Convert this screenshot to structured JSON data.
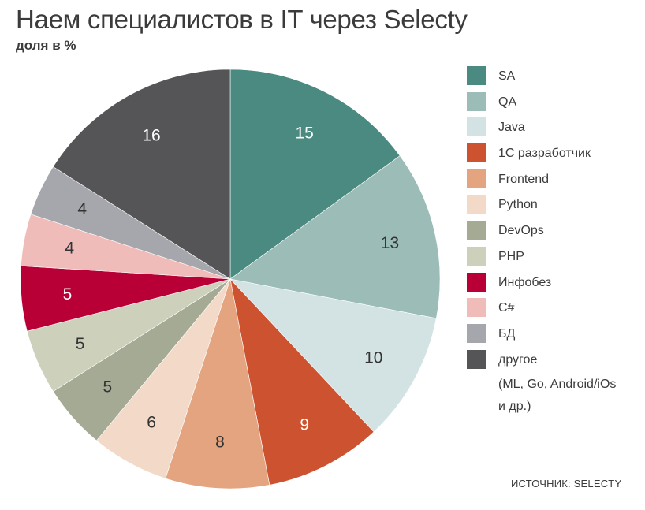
{
  "title": "Наем специалистов в IT через Selecty",
  "subtitle": "доля в %",
  "source": "ИСТОЧНИК: SELECTY",
  "chart_data": {
    "type": "pie",
    "title": "Наем специалистов в IT через Selecty",
    "subtitle": "доля в %",
    "legend_position": "right",
    "slices": [
      {
        "label": "SA",
        "value": 15,
        "color": "#4a8a80"
      },
      {
        "label": "QA",
        "value": 13,
        "color": "#9bbcb7"
      },
      {
        "label": "Java",
        "value": 10,
        "color": "#d3e3e4"
      },
      {
        "label": "1C разработчик",
        "value": 9,
        "color": "#cc5230"
      },
      {
        "label": "Frontend",
        "value": 8,
        "color": "#e4a47f"
      },
      {
        "label": "Python",
        "value": 6,
        "color": "#f3d9c8"
      },
      {
        "label": "DevOps",
        "value": 5,
        "color": "#a5aa95"
      },
      {
        "label": "PHP",
        "value": 5,
        "color": "#cdd1bb"
      },
      {
        "label": "Инфобез",
        "value": 5,
        "color": "#b80036"
      },
      {
        "label": "C#",
        "value": 4,
        "color": "#efbcb9"
      },
      {
        "label": "БД",
        "value": 4,
        "color": "#a6a7ac"
      },
      {
        "label": "другое",
        "value": 16,
        "color": "#555557"
      }
    ],
    "other_note_lines": [
      "(ML, Go, Android/iOs",
      "и др.)"
    ]
  }
}
